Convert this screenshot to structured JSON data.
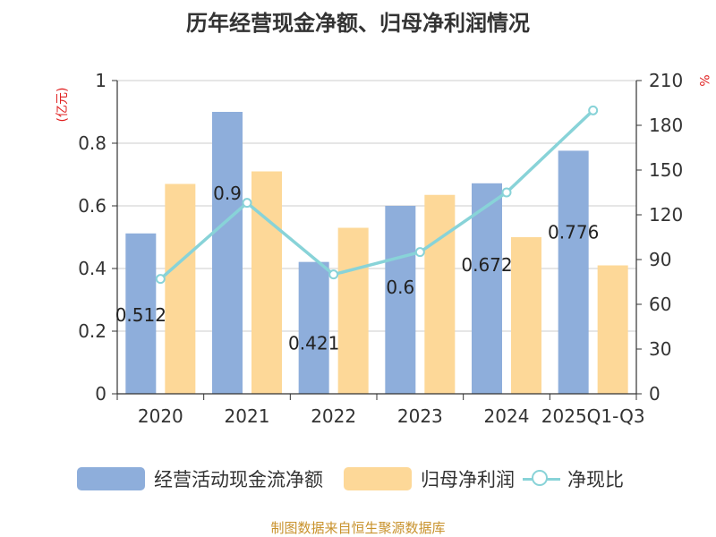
{
  "title": "历年经营现金净额、归母净利润情况",
  "left_unit": "(亿元)",
  "right_unit": "%",
  "legend": {
    "series1": "经营活动现金流净额",
    "series2": "归母净利润",
    "series3": "净现比"
  },
  "source": "制图数据来自恒生聚源数据库",
  "colors": {
    "bar1": "#8eaedb",
    "bar2": "#fdd898",
    "line": "#88d3d8"
  },
  "chart_data": {
    "type": "bar",
    "categories": [
      "2020",
      "2021",
      "2022",
      "2023",
      "2024",
      "2025Q1-Q3"
    ],
    "series": [
      {
        "name": "经营活动现金流净额",
        "axis": "left",
        "type": "bar",
        "values": [
          0.512,
          0.9,
          0.421,
          0.6,
          0.672,
          0.776
        ]
      },
      {
        "name": "归母净利润",
        "axis": "left",
        "type": "bar",
        "values": [
          0.67,
          0.71,
          0.53,
          0.635,
          0.5,
          0.41
        ]
      },
      {
        "name": "净现比",
        "axis": "right",
        "type": "line",
        "values": [
          77,
          128,
          80,
          95,
          135,
          190
        ]
      }
    ],
    "data_labels": [
      "0.512",
      "0.9",
      "0.421",
      "0.6",
      "0.672",
      "0.776"
    ],
    "left_axis": {
      "ylim": [
        0,
        1
      ],
      "ticks": [
        "0",
        "0.2",
        "0.4",
        "0.6",
        "0.8",
        "1"
      ]
    },
    "right_axis": {
      "ylim": [
        0,
        210
      ],
      "ticks": [
        "0",
        "30",
        "60",
        "90",
        "120",
        "150",
        "180",
        "210"
      ]
    },
    "grid": true,
    "legend_position": "bottom"
  }
}
